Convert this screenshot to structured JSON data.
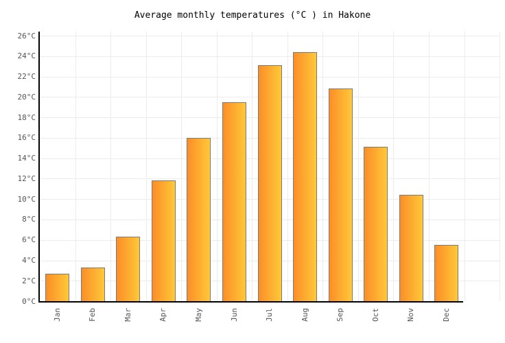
{
  "chart_data": {
    "type": "bar",
    "title": "Average monthly temperatures (°C ) in Hakone",
    "categories": [
      "Jan",
      "Feb",
      "Mar",
      "Apr",
      "May",
      "Jun",
      "Jul",
      "Aug",
      "Sep",
      "Oct",
      "Nov",
      "Dec"
    ],
    "values": [
      2.7,
      3.3,
      6.3,
      11.8,
      16.0,
      19.5,
      23.1,
      24.4,
      20.8,
      15.1,
      10.4,
      5.5
    ],
    "xlabel": "",
    "ylabel": "",
    "ylim": [
      0,
      26
    ],
    "ytick_step": 2,
    "ytick_suffix": "°C",
    "grid": true,
    "legend_position": "none",
    "colors": {
      "bar_gradient_left": "#fb8e28",
      "bar_gradient_right": "#ffc838",
      "bar_border": "#7a7a7a",
      "gridline": "#ececec",
      "axis": "#000000",
      "tick_label": "#545454",
      "title": "#000000",
      "background": "#ffffff"
    }
  }
}
